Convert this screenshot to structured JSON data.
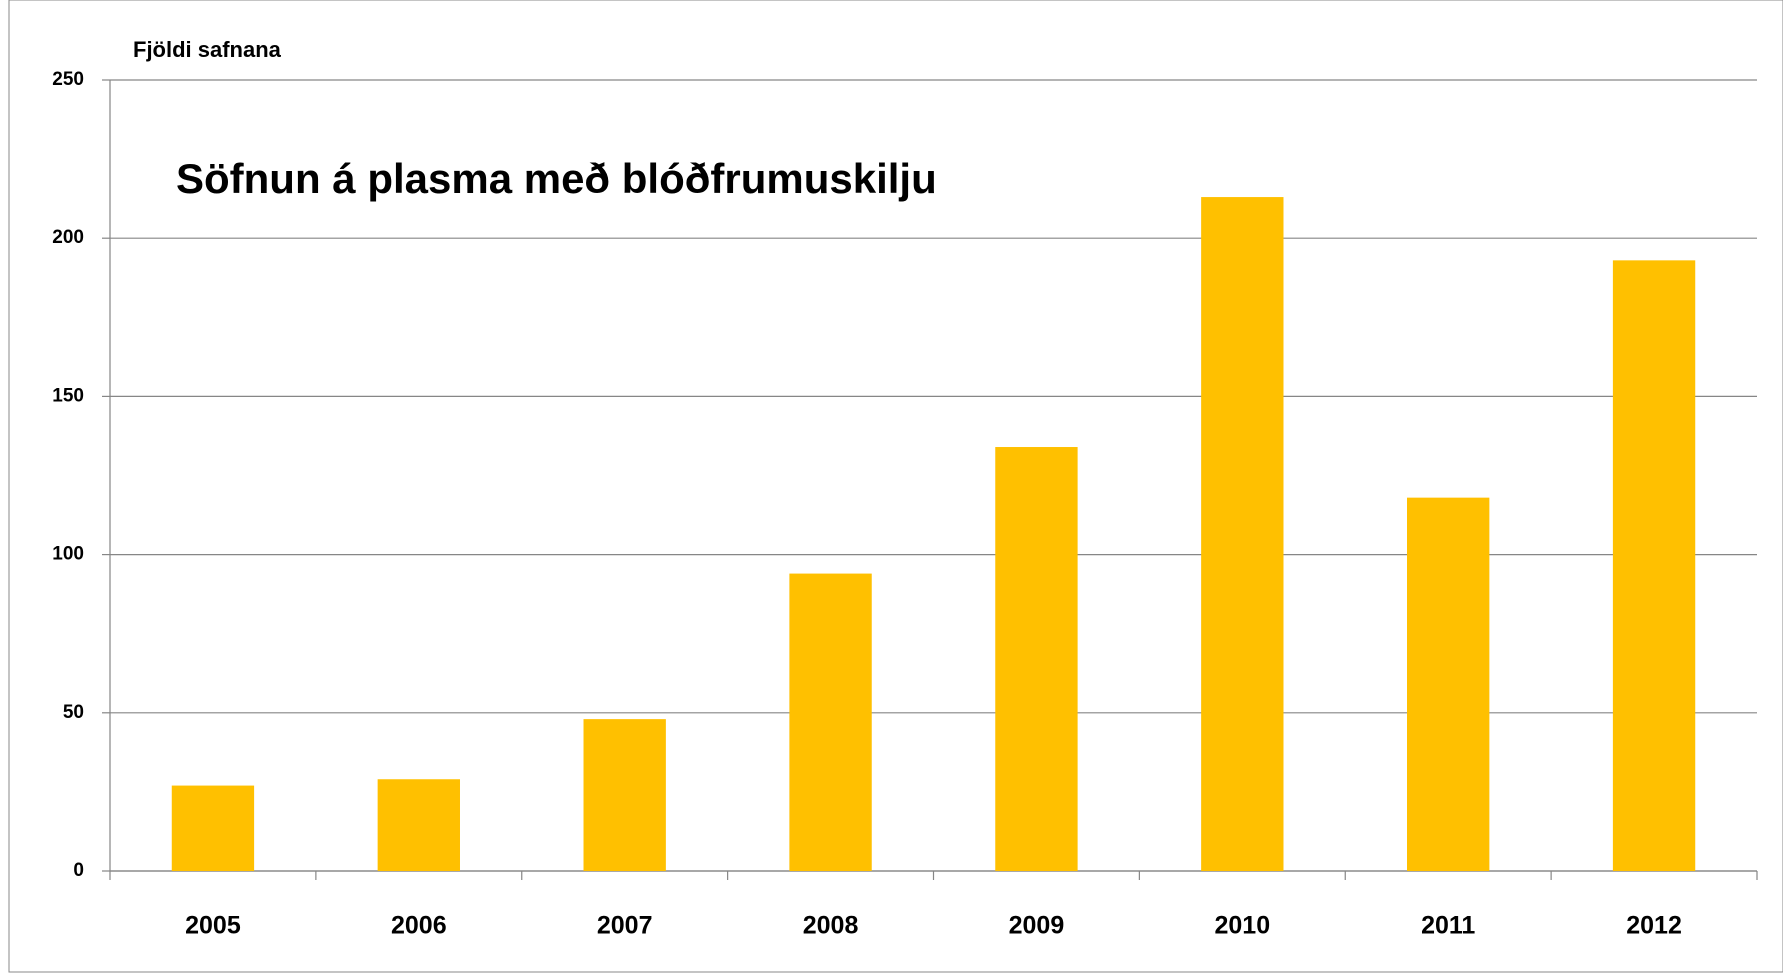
{
  "chart_data": {
    "type": "bar",
    "title": "Söfnun á plasma með blóðfrumuskilju",
    "y_label": "Fjöldi safnana",
    "categories": [
      "2005",
      "2006",
      "2007",
      "2008",
      "2009",
      "2010",
      "2011",
      "2012"
    ],
    "values": [
      27,
      29,
      48,
      94,
      134,
      213,
      118,
      193
    ],
    "color": "#ffc000",
    "ylim": [
      0,
      250
    ],
    "yticks": [
      0,
      50,
      100,
      150,
      200,
      250
    ],
    "grid": true
  }
}
